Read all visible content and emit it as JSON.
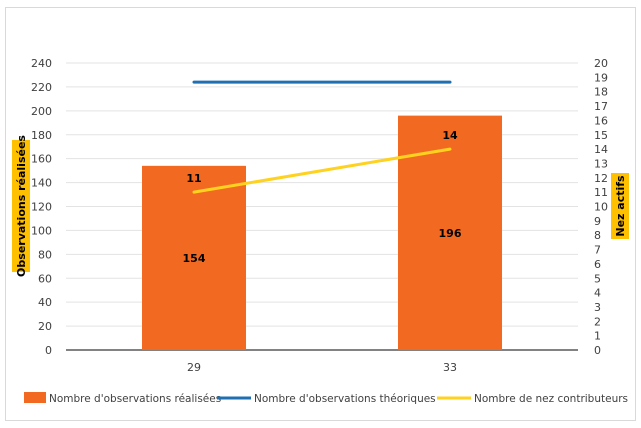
{
  "chart_data": {
    "type": "bar",
    "categories": [
      "29",
      "33"
    ],
    "series": [
      {
        "name": "Nombre d'observations réalisées",
        "type": "bar",
        "axis": "left",
        "color": "#f26a21",
        "values": [
          154,
          196
        ]
      },
      {
        "name": "Nombre d'observations théoriques",
        "type": "line",
        "axis": "left",
        "color": "#1f6fb2",
        "values": [
          224,
          224
        ]
      },
      {
        "name": "Nombre de nez contributeurs",
        "type": "line",
        "axis": "right",
        "color": "#ffd21f",
        "values": [
          11,
          14
        ]
      }
    ],
    "ylabel": "Observations réalisées",
    "y2label": "Nez actifs",
    "ylim": [
      0,
      240
    ],
    "yticks": [
      0,
      20,
      40,
      60,
      80,
      100,
      120,
      140,
      160,
      180,
      200,
      220,
      240
    ],
    "y2lim": [
      0,
      20
    ],
    "y2ticks": [
      0,
      1,
      2,
      3,
      4,
      5,
      6,
      7,
      8,
      9,
      10,
      11,
      12,
      13,
      14,
      15,
      16,
      17,
      18,
      19,
      20
    ],
    "grid": true,
    "legend": "bottom",
    "axis_label_background": "#ffc000"
  }
}
